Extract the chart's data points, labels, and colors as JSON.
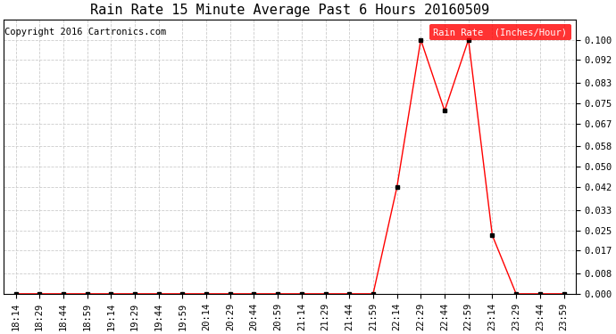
{
  "title": "Rain Rate 15 Minute Average Past 6 Hours 20160509",
  "copyright": "Copyright 2016 Cartronics.com",
  "legend_label": "Rain Rate  (Inches/Hour)",
  "ylim": [
    0,
    0.108
  ],
  "yticks": [
    0.0,
    0.008,
    0.017,
    0.025,
    0.033,
    0.042,
    0.05,
    0.058,
    0.067,
    0.075,
    0.083,
    0.092,
    0.1
  ],
  "x_labels": [
    "18:14",
    "18:29",
    "18:44",
    "18:59",
    "19:14",
    "19:29",
    "19:44",
    "19:59",
    "20:14",
    "20:29",
    "20:44",
    "20:59",
    "21:14",
    "21:29",
    "21:44",
    "21:59",
    "22:14",
    "22:29",
    "22:44",
    "22:59",
    "23:14",
    "23:29",
    "23:44",
    "23:59"
  ],
  "x_indices": [
    0,
    1,
    2,
    3,
    4,
    5,
    6,
    7,
    8,
    9,
    10,
    11,
    12,
    13,
    14,
    15,
    16,
    17,
    18,
    19,
    20,
    21,
    22,
    23
  ],
  "y_values": [
    0.0,
    0.0,
    0.0,
    0.0,
    0.0,
    0.0,
    0.0,
    0.0,
    0.0,
    0.0,
    0.0,
    0.0,
    0.0,
    0.0,
    0.0,
    0.0,
    0.042,
    0.1,
    0.072,
    0.1,
    0.023,
    0.0,
    0.0,
    0.0
  ],
  "line_color": "#ff0000",
  "marker_color": "#000000",
  "grid_color": "#cccccc",
  "background_color": "#ffffff",
  "legend_bg": "#ff0000",
  "legend_fg": "#ffffff",
  "title_fontsize": 11,
  "tick_fontsize": 7.5,
  "copyright_fontsize": 7.5
}
